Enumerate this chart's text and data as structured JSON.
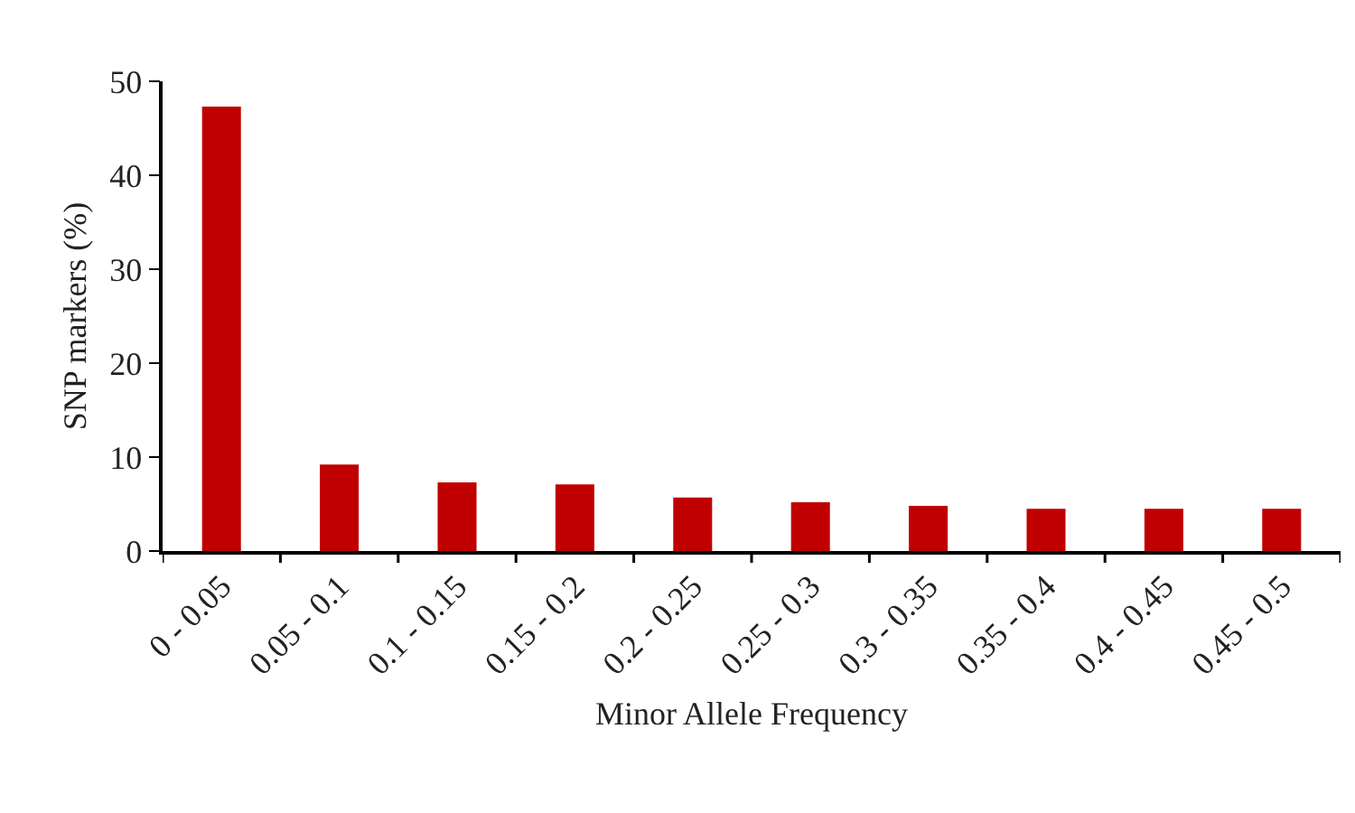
{
  "chart_data": {
    "type": "bar",
    "xlabel": "Minor Allele Frequency",
    "ylabel": "SNP markers (%)",
    "categories": [
      "0 - 0.05",
      "0.05 - 0.1",
      "0.1 - 0.15",
      "0.15 - 0.2",
      "0.2 - 0.25",
      "0.25 - 0.3",
      "0.3 - 0.35",
      "0.35 - 0.4",
      "0.4 - 0.45",
      "0.45 - 0.5"
    ],
    "values": [
      47.3,
      9.2,
      7.3,
      7.1,
      5.7,
      5.2,
      4.8,
      4.5,
      4.5,
      4.5
    ],
    "color": "#c00000",
    "ylim": [
      0,
      50
    ],
    "yticks": [
      0,
      10,
      20,
      30,
      40,
      50
    ]
  }
}
